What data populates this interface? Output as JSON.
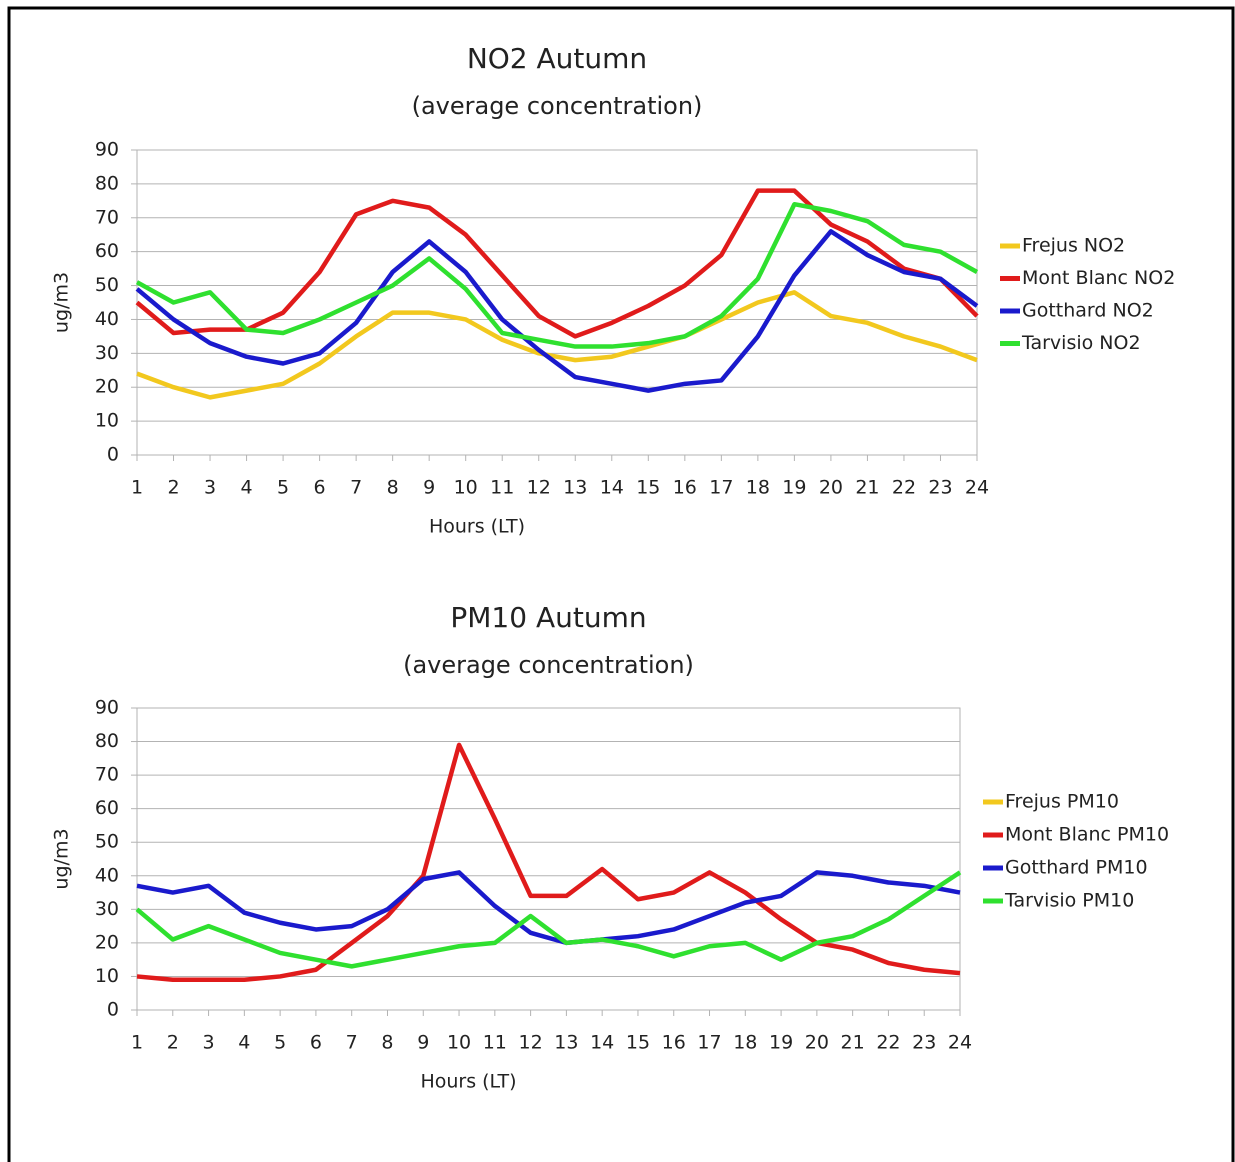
{
  "chart_data": [
    {
      "type": "line",
      "title": "NO2 Autumn",
      "subtitle": "(average concentration)",
      "x_label": "Hours (LT)",
      "y_label": "ug/m3",
      "categories": [
        "1",
        "2",
        "3",
        "4",
        "5",
        "6",
        "7",
        "8",
        "9",
        "10",
        "11",
        "12",
        "13",
        "14",
        "15",
        "16",
        "17",
        "18",
        "19",
        "20",
        "21",
        "22",
        "23",
        "24"
      ],
      "ylim": [
        0,
        90
      ],
      "yticks": [
        0,
        10,
        20,
        30,
        40,
        50,
        60,
        70,
        80,
        90
      ],
      "grid": true,
      "legend": "right",
      "series": [
        {
          "name": "Frejus NO2",
          "color": "#f2c81e",
          "values": [
            24,
            20,
            17,
            19,
            21,
            27,
            35,
            42,
            42,
            40,
            34,
            30,
            28,
            29,
            32,
            35,
            40,
            45,
            48,
            41,
            39,
            35,
            32,
            28
          ]
        },
        {
          "name": "Mont Blanc NO2",
          "color": "#e01b1b",
          "values": [
            45,
            36,
            37,
            37,
            42,
            54,
            71,
            75,
            73,
            65,
            53,
            41,
            35,
            39,
            44,
            50,
            59,
            78,
            78,
            68,
            63,
            55,
            52,
            41
          ]
        },
        {
          "name": "Gotthard NO2",
          "color": "#1a1acc",
          "values": [
            49,
            40,
            33,
            29,
            27,
            30,
            39,
            54,
            63,
            54,
            40,
            31,
            23,
            21,
            19,
            21,
            22,
            35,
            53,
            66,
            59,
            54,
            52,
            44
          ]
        },
        {
          "name": "Tarvisio NO2",
          "color": "#2fe02f",
          "values": [
            51,
            45,
            48,
            37,
            36,
            40,
            45,
            50,
            58,
            49,
            36,
            34,
            32,
            32,
            33,
            35,
            41,
            52,
            74,
            72,
            69,
            62,
            60,
            54
          ]
        }
      ]
    },
    {
      "type": "line",
      "title": "PM10 Autumn",
      "subtitle": "(average concentration)",
      "x_label": "Hours (LT)",
      "y_label": "ug/m3",
      "categories": [
        "1",
        "2",
        "3",
        "4",
        "5",
        "6",
        "7",
        "8",
        "9",
        "10",
        "11",
        "12",
        "13",
        "14",
        "15",
        "16",
        "17",
        "18",
        "19",
        "20",
        "21",
        "22",
        "23",
        "24"
      ],
      "ylim": [
        0,
        90
      ],
      "yticks": [
        0,
        10,
        20,
        30,
        40,
        50,
        60,
        70,
        80,
        90
      ],
      "grid": true,
      "legend": "right",
      "series": [
        {
          "name": "Frejus PM10",
          "color": "#f2c81e",
          "values": [
            null,
            null,
            null,
            null,
            null,
            null,
            null,
            null,
            null,
            null,
            null,
            null,
            null,
            null,
            null,
            null,
            null,
            null,
            null,
            null,
            null,
            null,
            null,
            null
          ]
        },
        {
          "name": "Mont Blanc PM10",
          "color": "#e01b1b",
          "values": [
            10,
            9,
            9,
            9,
            10,
            12,
            20,
            28,
            40,
            79,
            57,
            34,
            34,
            42,
            33,
            35,
            41,
            35,
            27,
            20,
            18,
            14,
            12,
            11
          ]
        },
        {
          "name": "Gotthard PM10",
          "color": "#1a1acc",
          "values": [
            37,
            35,
            37,
            29,
            26,
            24,
            25,
            30,
            39,
            41,
            31,
            23,
            20,
            21,
            22,
            24,
            28,
            32,
            34,
            41,
            40,
            38,
            37,
            35
          ]
        },
        {
          "name": "Tarvisio PM10",
          "color": "#2fe02f",
          "values": [
            30,
            21,
            25,
            21,
            17,
            15,
            13,
            15,
            17,
            19,
            20,
            28,
            20,
            21,
            19,
            16,
            19,
            20,
            15,
            20,
            22,
            27,
            34,
            41
          ]
        }
      ]
    }
  ]
}
